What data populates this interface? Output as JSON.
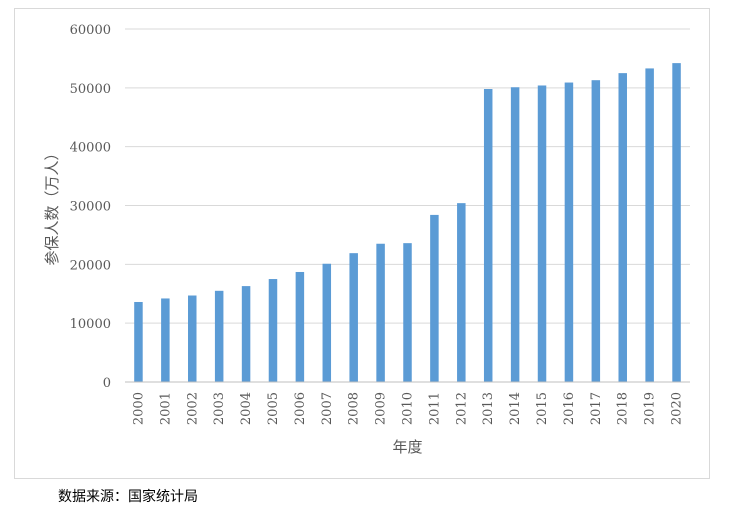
{
  "chart_data": {
    "type": "bar",
    "title": "",
    "xlabel": "年度",
    "ylabel": "参保人数（万人）",
    "categories": [
      "2000",
      "2001",
      "2002",
      "2003",
      "2004",
      "2005",
      "2006",
      "2007",
      "2008",
      "2009",
      "2010",
      "2011",
      "2012",
      "2013",
      "2014",
      "2015",
      "2016",
      "2017",
      "2018",
      "2019",
      "2020"
    ],
    "values": [
      13600,
      14200,
      14700,
      15500,
      16300,
      17500,
      18700,
      20100,
      21900,
      23500,
      23600,
      28400,
      30400,
      49800,
      50100,
      50400,
      50900,
      51300,
      52500,
      53300,
      54200
    ],
    "ylim": [
      0,
      60000
    ],
    "yticks": [
      0,
      10000,
      20000,
      30000,
      40000,
      50000,
      60000
    ],
    "grid": true,
    "bar_color": "#5b9bd5",
    "grid_color": "#d9d9d9",
    "legend": "none"
  },
  "source_note": "数据来源：国家统计局"
}
